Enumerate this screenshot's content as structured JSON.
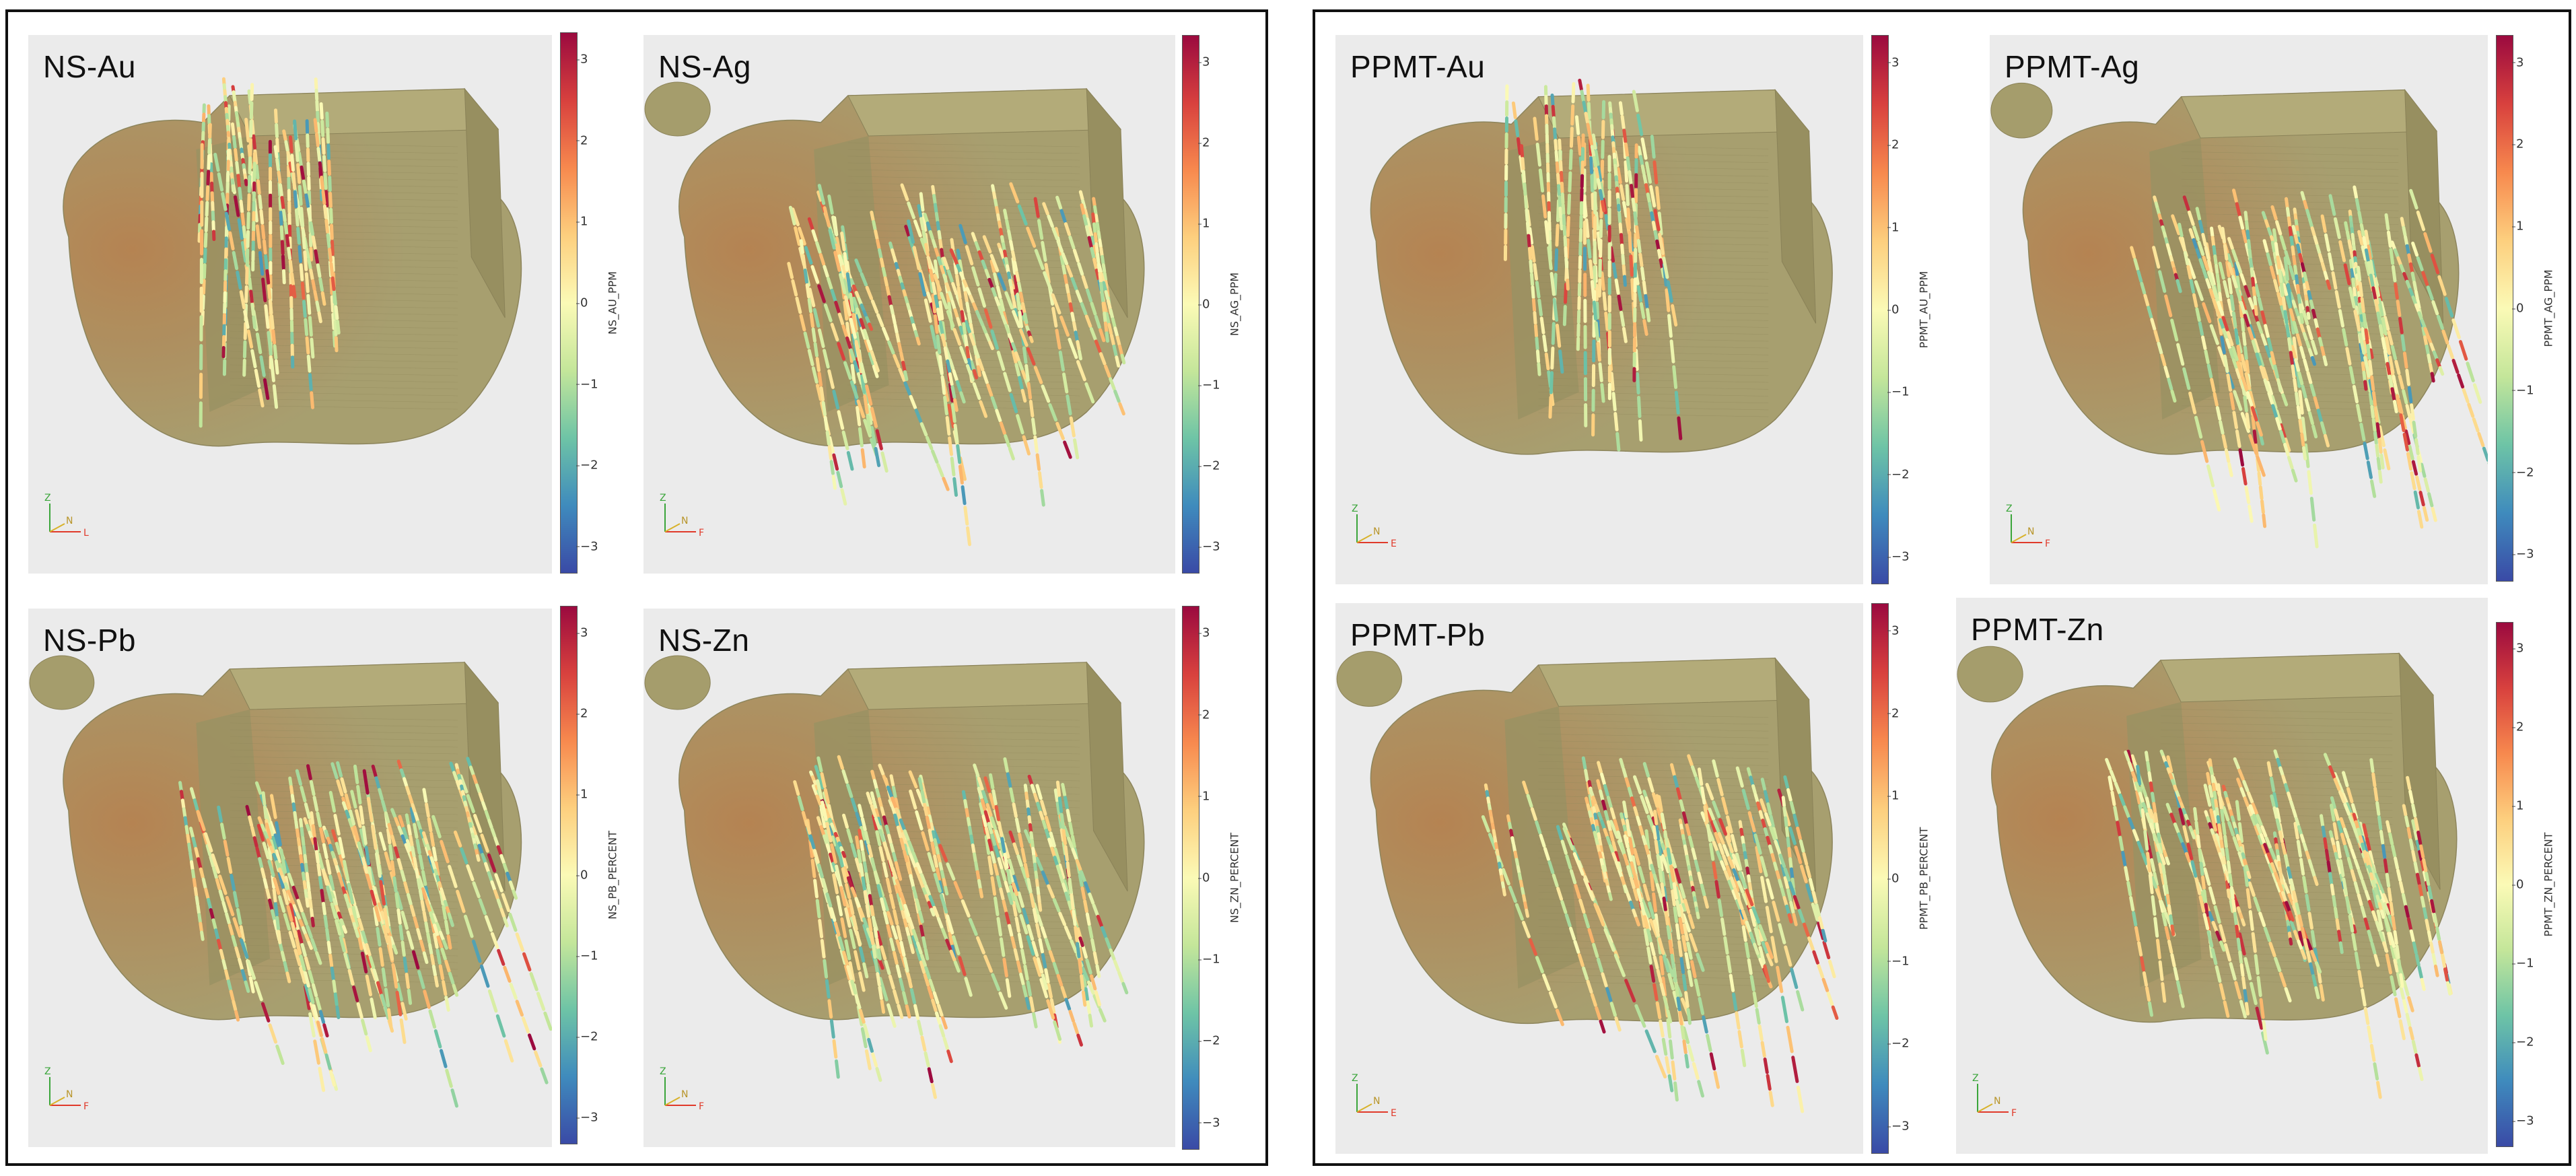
{
  "colormap": {
    "name": "Spectral",
    "stops": [
      "#3a4aa6",
      "#3f8bbd",
      "#6ec4a6",
      "#c4e69a",
      "#fbfab6",
      "#fdcf7e",
      "#f7894e",
      "#d8413e",
      "#9b0a3f"
    ]
  },
  "colors": {
    "mesh": "#a59d6c",
    "mesh_dark": "#8a8258",
    "mesh_warm": "#b4804e",
    "plot_bg": "#ebebeb"
  },
  "colorbar_ticks": [
    "3",
    "2",
    "1",
    "0",
    "−1",
    "−2",
    "−3"
  ],
  "groups": [
    {
      "panels": [
        {
          "title": "NS-Au",
          "cbar_label": "NS_AU_PPM",
          "axis": "L",
          "variant": "au"
        },
        {
          "title": "NS-Ag",
          "cbar_label": "NS_AG_PPM",
          "axis": "F",
          "variant": "ag"
        },
        {
          "title": "NS-Pb",
          "cbar_label": "NS_PB_PERCENT",
          "axis": "F",
          "variant": "pb"
        },
        {
          "title": "NS-Zn",
          "cbar_label": "NS_ZN_PERCENT",
          "axis": "F",
          "variant": "zn"
        }
      ]
    },
    {
      "panels": [
        {
          "title": "PPMT-Au",
          "cbar_label": "PPMT_AU_PPM",
          "axis": "E",
          "variant": "au"
        },
        {
          "title": "PPMT-Ag",
          "cbar_label": "PPMT_AG_PPM",
          "axis": "F",
          "variant": "ag"
        },
        {
          "title": "PPMT-Pb",
          "cbar_label": "PPMT_PB_PERCENT",
          "axis": "E",
          "variant": "pb"
        },
        {
          "title": "PPMT-Zn",
          "cbar_label": "PPMT_ZN_PERCENT",
          "axis": "F",
          "variant": "zn"
        }
      ]
    }
  ],
  "axes_labels": {
    "z": "Z",
    "n": "N"
  }
}
